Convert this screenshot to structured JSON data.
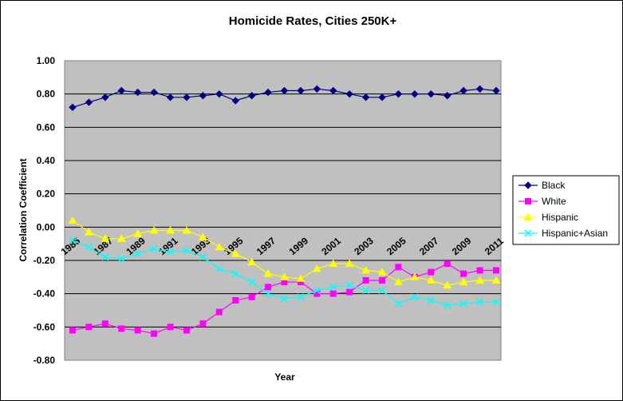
{
  "chart_data": {
    "type": "line",
    "title": "Homicide Rates, Cities 250K+",
    "xlabel": "Year",
    "ylabel": "Correlation Coefficient",
    "ylim": [
      -0.8,
      1.0
    ],
    "y_ticks": [
      "1.00",
      "0.80",
      "0.60",
      "0.40",
      "0.20",
      "0.00",
      "-0.20",
      "-0.40",
      "-0.60",
      "-0.80"
    ],
    "y_tick_values": [
      1.0,
      0.8,
      0.6,
      0.4,
      0.2,
      0.0,
      -0.2,
      -0.4,
      -0.6,
      -0.8
    ],
    "x": [
      1985,
      1986,
      1987,
      1988,
      1989,
      1990,
      1991,
      1992,
      1993,
      1994,
      1995,
      1996,
      1997,
      1998,
      1999,
      2000,
      2001,
      2002,
      2003,
      2004,
      2005,
      2006,
      2007,
      2008,
      2009,
      2010,
      2011
    ],
    "x_tick_labels": [
      "1985",
      "1987",
      "1989",
      "1991",
      "1993",
      "1995",
      "1997",
      "1999",
      "2001",
      "2003",
      "2005",
      "2007",
      "2009",
      "2011"
    ],
    "x_tick_values": [
      1985,
      1987,
      1989,
      1991,
      1993,
      1995,
      1997,
      1999,
      2001,
      2003,
      2005,
      2007,
      2009,
      2011
    ],
    "grid": true,
    "legend_position": "right",
    "plot_background": "#c0c0c0",
    "series": [
      {
        "name": "Black",
        "color": "#000080",
        "marker": "diamond",
        "values": [
          0.72,
          0.75,
          0.78,
          0.82,
          0.81,
          0.81,
          0.78,
          0.78,
          0.79,
          0.8,
          0.76,
          0.79,
          0.81,
          0.82,
          0.82,
          0.83,
          0.82,
          0.8,
          0.78,
          0.78,
          0.8,
          0.8,
          0.8,
          0.79,
          0.82,
          0.83,
          0.82
        ]
      },
      {
        "name": "White",
        "color": "#ff00ff",
        "marker": "square",
        "values": [
          -0.62,
          -0.6,
          -0.58,
          -0.61,
          -0.62,
          -0.64,
          -0.6,
          -0.62,
          -0.58,
          -0.51,
          -0.44,
          -0.42,
          -0.36,
          -0.33,
          -0.33,
          -0.4,
          -0.4,
          -0.39,
          -0.32,
          -0.32,
          -0.24,
          -0.3,
          -0.27,
          -0.22,
          -0.28,
          -0.26,
          -0.26
        ]
      },
      {
        "name": "Hispanic",
        "color": "#ffff00",
        "marker": "triangle",
        "values": [
          0.04,
          -0.03,
          -0.07,
          -0.07,
          -0.04,
          -0.02,
          -0.02,
          -0.02,
          -0.06,
          -0.12,
          -0.16,
          -0.21,
          -0.28,
          -0.3,
          -0.31,
          -0.25,
          -0.22,
          -0.22,
          -0.26,
          -0.27,
          -0.33,
          -0.3,
          -0.32,
          -0.35,
          -0.33,
          -0.32,
          -0.32
        ]
      },
      {
        "name": "Hispanic+Asian",
        "color": "#00ffff",
        "marker": "x",
        "values": [
          -0.08,
          -0.12,
          -0.18,
          -0.19,
          -0.16,
          -0.13,
          -0.15,
          -0.14,
          -0.18,
          -0.25,
          -0.28,
          -0.33,
          -0.4,
          -0.43,
          -0.42,
          -0.38,
          -0.36,
          -0.35,
          -0.38,
          -0.38,
          -0.46,
          -0.42,
          -0.44,
          -0.47,
          -0.46,
          -0.45,
          -0.45
        ]
      }
    ]
  }
}
